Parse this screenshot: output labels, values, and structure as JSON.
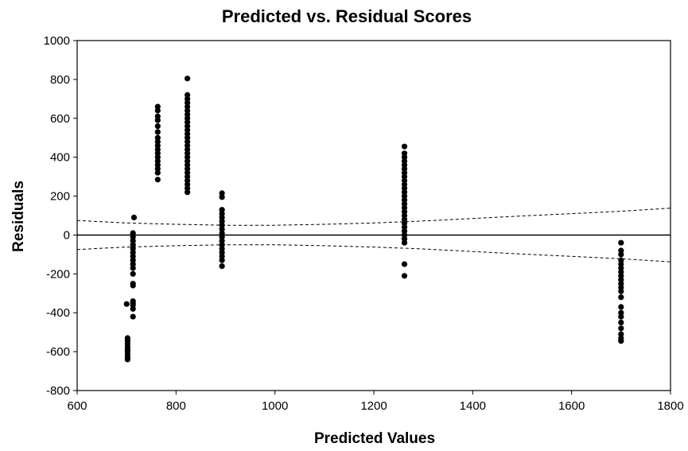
{
  "chart_data": {
    "type": "scatter",
    "title": "Predicted vs. Residual Scores",
    "xlabel": "Predicted Values",
    "ylabel": "Residuals",
    "xlim": [
      600,
      1800
    ],
    "ylim": [
      -800,
      1000
    ],
    "xticks": [
      600,
      800,
      1000,
      1200,
      1400,
      1600,
      1800
    ],
    "yticks": [
      -800,
      -600,
      -400,
      -200,
      0,
      200,
      400,
      600,
      800,
      1000
    ],
    "grid": false,
    "legend": "none",
    "point_color": "#000000",
    "reference_line": {
      "y": 0
    },
    "confidence_band": {
      "upper": [
        [
          600,
          75
        ],
        [
          650,
          68
        ],
        [
          700,
          62
        ],
        [
          800,
          55
        ],
        [
          900,
          50
        ],
        [
          1000,
          50
        ],
        [
          1100,
          55
        ],
        [
          1200,
          62
        ],
        [
          1300,
          72
        ],
        [
          1400,
          85
        ],
        [
          1500,
          98
        ],
        [
          1600,
          110
        ],
        [
          1700,
          122
        ],
        [
          1800,
          138
        ]
      ],
      "lower": [
        [
          600,
          -75
        ],
        [
          650,
          -68
        ],
        [
          700,
          -62
        ],
        [
          800,
          -55
        ],
        [
          900,
          -50
        ],
        [
          1000,
          -50
        ],
        [
          1100,
          -55
        ],
        [
          1200,
          -62
        ],
        [
          1300,
          -72
        ],
        [
          1400,
          -85
        ],
        [
          1500,
          -98
        ],
        [
          1600,
          -110
        ],
        [
          1700,
          -122
        ],
        [
          1800,
          -138
        ]
      ]
    },
    "points": [
      [
        700,
        -355
      ],
      [
        702,
        -530
      ],
      [
        702,
        -545
      ],
      [
        702,
        -560
      ],
      [
        702,
        -575
      ],
      [
        702,
        -590
      ],
      [
        702,
        -600
      ],
      [
        702,
        -615
      ],
      [
        702,
        -630
      ],
      [
        702,
        -640
      ],
      [
        715,
        90
      ],
      [
        713,
        10
      ],
      [
        713,
        -10
      ],
      [
        713,
        -30
      ],
      [
        713,
        -50
      ],
      [
        713,
        -70
      ],
      [
        713,
        -90
      ],
      [
        713,
        -110
      ],
      [
        713,
        -130
      ],
      [
        713,
        -150
      ],
      [
        713,
        -170
      ],
      [
        713,
        -200
      ],
      [
        713,
        -250
      ],
      [
        713,
        -260
      ],
      [
        713,
        -340
      ],
      [
        713,
        -350
      ],
      [
        713,
        -360
      ],
      [
        713,
        -380
      ],
      [
        713,
        -420
      ],
      [
        763,
        660
      ],
      [
        763,
        640
      ],
      [
        763,
        610
      ],
      [
        763,
        590
      ],
      [
        763,
        560
      ],
      [
        763,
        530
      ],
      [
        763,
        500
      ],
      [
        763,
        480
      ],
      [
        763,
        460
      ],
      [
        763,
        440
      ],
      [
        763,
        420
      ],
      [
        763,
        400
      ],
      [
        763,
        380
      ],
      [
        763,
        360
      ],
      [
        763,
        340
      ],
      [
        763,
        320
      ],
      [
        763,
        285
      ],
      [
        823,
        805
      ],
      [
        823,
        720
      ],
      [
        823,
        700
      ],
      [
        823,
        680
      ],
      [
        823,
        660
      ],
      [
        823,
        640
      ],
      [
        823,
        620
      ],
      [
        823,
        600
      ],
      [
        823,
        580
      ],
      [
        823,
        560
      ],
      [
        823,
        540
      ],
      [
        823,
        520
      ],
      [
        823,
        500
      ],
      [
        823,
        480
      ],
      [
        823,
        460
      ],
      [
        823,
        440
      ],
      [
        823,
        420
      ],
      [
        823,
        400
      ],
      [
        823,
        380
      ],
      [
        823,
        360
      ],
      [
        823,
        340
      ],
      [
        823,
        320
      ],
      [
        823,
        300
      ],
      [
        823,
        280
      ],
      [
        823,
        260
      ],
      [
        823,
        240
      ],
      [
        823,
        220
      ],
      [
        893,
        215
      ],
      [
        893,
        195
      ],
      [
        893,
        130
      ],
      [
        893,
        110
      ],
      [
        893,
        90
      ],
      [
        893,
        70
      ],
      [
        893,
        50
      ],
      [
        893,
        30
      ],
      [
        893,
        10
      ],
      [
        893,
        -10
      ],
      [
        893,
        -30
      ],
      [
        893,
        -50
      ],
      [
        893,
        -70
      ],
      [
        893,
        -90
      ],
      [
        893,
        -110
      ],
      [
        893,
        -130
      ],
      [
        893,
        -160
      ],
      [
        1262,
        455
      ],
      [
        1262,
        420
      ],
      [
        1262,
        400
      ],
      [
        1262,
        380
      ],
      [
        1262,
        360
      ],
      [
        1262,
        340
      ],
      [
        1262,
        320
      ],
      [
        1262,
        300
      ],
      [
        1262,
        280
      ],
      [
        1262,
        260
      ],
      [
        1262,
        240
      ],
      [
        1262,
        220
      ],
      [
        1262,
        200
      ],
      [
        1262,
        180
      ],
      [
        1262,
        160
      ],
      [
        1262,
        140
      ],
      [
        1262,
        120
      ],
      [
        1262,
        100
      ],
      [
        1262,
        80
      ],
      [
        1262,
        60
      ],
      [
        1262,
        40
      ],
      [
        1262,
        20
      ],
      [
        1262,
        0
      ],
      [
        1262,
        -20
      ],
      [
        1262,
        -40
      ],
      [
        1262,
        -150
      ],
      [
        1262,
        -210
      ],
      [
        1700,
        -40
      ],
      [
        1700,
        -80
      ],
      [
        1700,
        -100
      ],
      [
        1700,
        -130
      ],
      [
        1700,
        -150
      ],
      [
        1700,
        -170
      ],
      [
        1700,
        -190
      ],
      [
        1700,
        -210
      ],
      [
        1700,
        -230
      ],
      [
        1700,
        -250
      ],
      [
        1700,
        -270
      ],
      [
        1700,
        -290
      ],
      [
        1700,
        -320
      ],
      [
        1700,
        -370
      ],
      [
        1700,
        -400
      ],
      [
        1700,
        -420
      ],
      [
        1700,
        -450
      ],
      [
        1700,
        -480
      ],
      [
        1700,
        -510
      ],
      [
        1700,
        -530
      ],
      [
        1700,
        -545
      ]
    ]
  }
}
